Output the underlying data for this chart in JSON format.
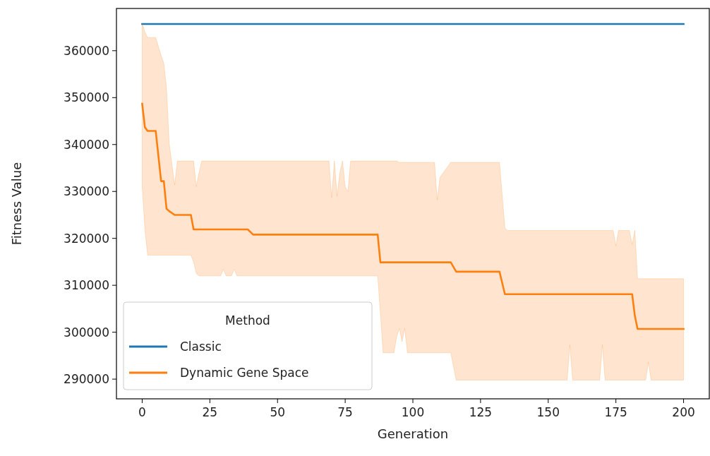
{
  "chart_data": {
    "type": "line",
    "xlabel": "Generation",
    "ylabel": "Fitness Value",
    "legend_title": "Method",
    "legend": "bottom left",
    "xlim": [
      -9.5,
      209.5
    ],
    "ylim": [
      285800,
      369000
    ],
    "xticks": [
      0,
      25,
      50,
      75,
      100,
      125,
      150,
      175,
      200
    ],
    "yticks": [
      290000,
      300000,
      310000,
      320000,
      330000,
      340000,
      350000,
      360000
    ],
    "series": [
      {
        "name": "Classic",
        "color": "#1f77b4",
        "x": [
          0,
          200
        ],
        "values": [
          365700,
          365700
        ]
      },
      {
        "name": "Dynamic Gene Space",
        "color": "#ff7f0e",
        "x": [
          0,
          1,
          2,
          5,
          7,
          8,
          9,
          10,
          12,
          13,
          18,
          19,
          20,
          21,
          22,
          29,
          30,
          31,
          33,
          34,
          35,
          39,
          41,
          69,
          70,
          71,
          72,
          73,
          74,
          75,
          76,
          77,
          87,
          88,
          89,
          93,
          94,
          95,
          96,
          97,
          98,
          108,
          109,
          110,
          114,
          116,
          132,
          134,
          135,
          157,
          158,
          159,
          169,
          170,
          171,
          174,
          175,
          176,
          180,
          181,
          182,
          183,
          186,
          187,
          188,
          200
        ],
        "values": [
          348700,
          343700,
          342900,
          342900,
          332200,
          332200,
          326300,
          325800,
          325000,
          325000,
          325000,
          321900,
          321900,
          321900,
          321900,
          321900,
          321900,
          321900,
          321900,
          321900,
          321900,
          321900,
          320800,
          320800,
          320800,
          320800,
          320800,
          320800,
          320800,
          320800,
          320800,
          320800,
          320800,
          314900,
          314900,
          314900,
          314900,
          314900,
          314900,
          314900,
          314900,
          314900,
          314900,
          314900,
          314900,
          312900,
          312900,
          308100,
          308100,
          308100,
          308100,
          308100,
          308100,
          308100,
          308100,
          308100,
          308100,
          308100,
          308100,
          308100,
          303500,
          300700,
          300700,
          300700,
          300700,
          300700
        ],
        "lower": [
          331000,
          322000,
          316400,
          316400,
          316400,
          316400,
          316400,
          316400,
          316400,
          316400,
          316400,
          315000,
          312500,
          312000,
          312000,
          312000,
          313400,
          312000,
          312000,
          313400,
          312000,
          312000,
          312000,
          312000,
          312000,
          312000,
          312000,
          312000,
          312000,
          312000,
          312000,
          312000,
          312000,
          304000,
          295600,
          295600,
          299000,
          300800,
          298000,
          300800,
          295600,
          295600,
          295600,
          295600,
          295600,
          289800,
          289800,
          289800,
          289800,
          289800,
          297300,
          289800,
          289800,
          297300,
          289800,
          289800,
          289800,
          289800,
          289800,
          289800,
          289800,
          289800,
          289800,
          293600,
          289800,
          289800
        ],
        "upper": [
          365800,
          364000,
          362800,
          362800,
          359000,
          357300,
          352000,
          340200,
          331400,
          336500,
          336500,
          336500,
          331000,
          334000,
          336500,
          336500,
          336500,
          336500,
          336500,
          336500,
          336500,
          336500,
          336500,
          336500,
          328700,
          336500,
          329000,
          334000,
          336500,
          331000,
          330000,
          336500,
          336500,
          336500,
          336500,
          336500,
          336500,
          336200,
          336200,
          336200,
          336200,
          336200,
          328200,
          333000,
          336200,
          336200,
          336200,
          322200,
          321700,
          321700,
          321700,
          321700,
          321700,
          321700,
          321700,
          321700,
          318400,
          321700,
          321700,
          318700,
          321700,
          311400,
          311400,
          311400,
          311400,
          311400
        ]
      }
    ]
  }
}
